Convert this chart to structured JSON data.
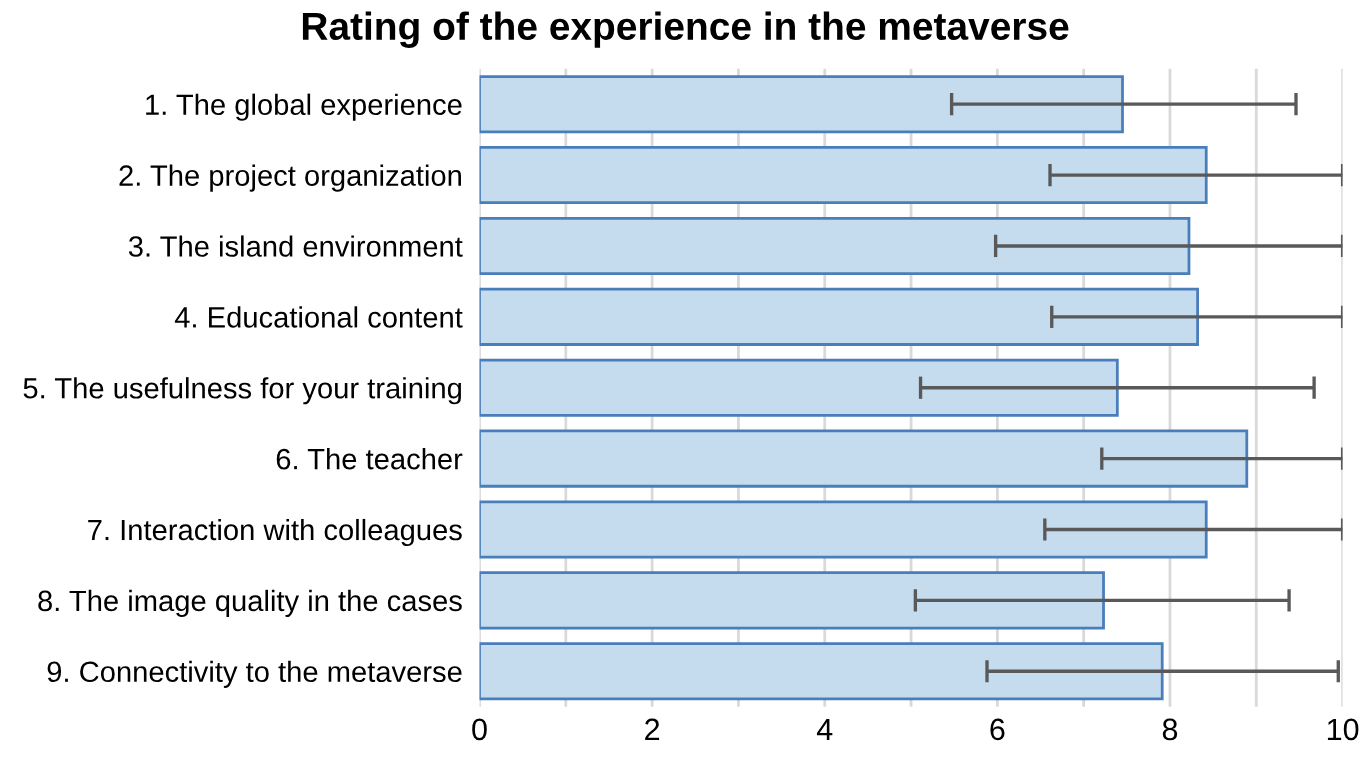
{
  "chart_data": {
    "type": "bar",
    "orientation": "horizontal",
    "title": "Rating of the experience in the metaverse",
    "categories": [
      "1. The global experience",
      "2. The project organization",
      "3. The island environment",
      "4. Educational content",
      "5. The usefulness for your training",
      "6. The teacher",
      "7. Interaction with colleagues",
      "8. The image quality in the cases",
      "9. Connectivity to the metaverse"
    ],
    "series": [
      {
        "color": "#c5dcef",
        "values": [
          7.45,
          8.42,
          8.22,
          8.32,
          7.39,
          8.89,
          8.42,
          7.23,
          7.91
        ],
        "errors": [
          [
            5.47,
            9.46
          ],
          [
            6.61,
            10
          ],
          [
            5.98,
            10
          ],
          [
            6.63,
            10
          ],
          [
            5.11,
            9.67
          ],
          [
            7.21,
            10
          ],
          [
            6.55,
            10
          ],
          [
            5.05,
            9.38
          ],
          [
            5.88,
            9.95
          ]
        ]
      }
    ],
    "xlim": [
      0,
      10
    ],
    "xticks": [
      0,
      {
        "value": 1,
        "label": null
      },
      2,
      {
        "value": 3,
        "label": null
      },
      4,
      {
        "value": 5,
        "label": null
      },
      6,
      {
        "value": 7,
        "label": null
      },
      8,
      {
        "value": 9,
        "label": null
      },
      10
    ],
    "grid": "x",
    "legend": false
  }
}
